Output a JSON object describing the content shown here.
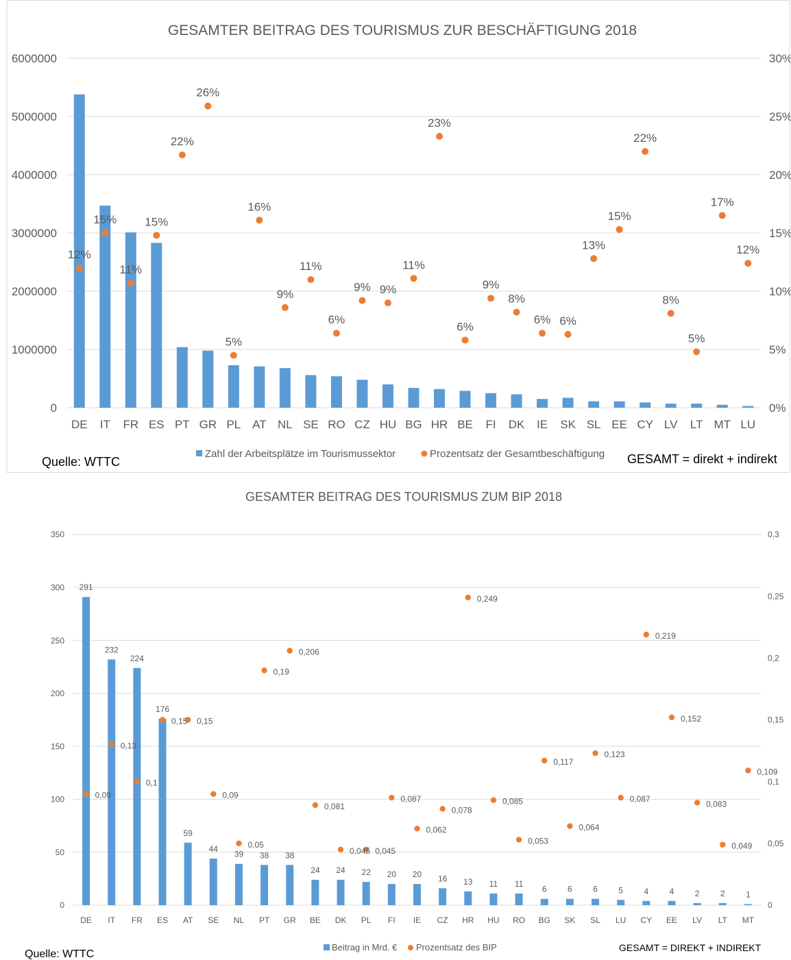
{
  "colors": {
    "bar": "#5b9bd5",
    "dot": "#ed7d31",
    "text": "#595959",
    "grid": "#d9d9d9",
    "footer": "#000000"
  },
  "chart_data": [
    {
      "type": "bar",
      "title": "GESAMTER BEITRAG DES TOURISMUS  ZUR BESCHÄFTIGUNG 2018",
      "categories": [
        "DE",
        "IT",
        "FR",
        "ES",
        "PT",
        "GR",
        "PL",
        "AT",
        "NL",
        "SE",
        "RO",
        "CZ",
        "HU",
        "BG",
        "HR",
        "BE",
        "FI",
        "DK",
        "IE",
        "SK",
        "SL",
        "EE",
        "CY",
        "LV",
        "LT",
        "MT",
        "LU"
      ],
      "series": [
        {
          "name": "Zahl der Arbeitsplätze im Tourismussektor",
          "kind": "bar",
          "axis": "left",
          "values": [
            5380000,
            3470000,
            3010000,
            2830000,
            1040000,
            980000,
            730000,
            710000,
            680000,
            560000,
            540000,
            480000,
            400000,
            340000,
            320000,
            290000,
            250000,
            230000,
            150000,
            170000,
            110000,
            110000,
            90000,
            70000,
            70000,
            50000,
            30000
          ]
        },
        {
          "name": "Prozentsatz der Gesamtbeschäftigung",
          "kind": "dot",
          "axis": "right",
          "values": [
            0.12,
            0.15,
            0.107,
            0.148,
            0.217,
            0.259,
            0.045,
            0.161,
            0.086,
            0.11,
            0.064,
            0.092,
            0.09,
            0.111,
            0.233,
            0.058,
            0.094,
            0.082,
            0.064,
            0.063,
            0.128,
            0.153,
            0.22,
            0.081,
            0.048,
            0.165,
            0.124
          ],
          "labels": [
            "12%",
            "15%",
            "11%",
            "15%",
            "22%",
            "26%",
            "5%",
            "16%",
            "9%",
            "11%",
            "6%",
            "9%",
            "9%",
            "11%",
            "23%",
            "6%",
            "9%",
            "8%",
            "6%",
            "6%",
            "13%",
            "15%",
            "22%",
            "8%",
            "5%",
            "17%",
            "12%"
          ]
        }
      ],
      "ylim": [
        0,
        6000000
      ],
      "y2lim": [
        0,
        0.3
      ],
      "yticks": [
        "0",
        "1000000",
        "2000000",
        "3000000",
        "4000000",
        "5000000",
        "6000000"
      ],
      "y2ticks": [
        "0%",
        "5%",
        "10%",
        "15%",
        "20%",
        "25%",
        "30%"
      ],
      "grid": true,
      "legend": "bottom",
      "source": "Quelle: WTTC",
      "note": "GESAMT = direkt + indirekt"
    },
    {
      "type": "bar",
      "title": "GESAMTER BEITRAG DES TOURISMUS ZUM BIP 2018",
      "categories": [
        "DE",
        "IT",
        "FR",
        "ES",
        "AT",
        "SE",
        "NL",
        "PT",
        "GR",
        "BE",
        "DK",
        "PL",
        "FI",
        "IE",
        "CZ",
        "HR",
        "HU",
        "RO",
        "BG",
        "SK",
        "SL",
        "LU",
        "CY",
        "EE",
        "LV",
        "LT",
        "MT"
      ],
      "series": [
        {
          "name": "Beitrag in Mrd. €",
          "kind": "bar",
          "axis": "left",
          "values": [
            291,
            232,
            224,
            176,
            59,
            44,
            39,
            38,
            38,
            24,
            24,
            22,
            20,
            20,
            16,
            13,
            11,
            11,
            6,
            6,
            6,
            5,
            4,
            4,
            2,
            2,
            1
          ],
          "labels": [
            "291",
            "232",
            "224",
            "176",
            "59",
            "44",
            "39",
            "38",
            "38",
            "24",
            "24",
            "22",
            "20",
            "20",
            "16",
            "13",
            "11",
            "11",
            "6",
            "6",
            "6",
            "5",
            "4",
            "4",
            "2",
            "2",
            "1"
          ]
        },
        {
          "name": "Prozentsatz des BIP",
          "kind": "dot",
          "axis": "right",
          "values": [
            0.09,
            0.13,
            0.1,
            0.15,
            0.15,
            0.09,
            0.05,
            0.19,
            0.206,
            0.081,
            0.045,
            0.045,
            0.087,
            0.062,
            0.078,
            0.249,
            0.085,
            0.053,
            0.117,
            0.064,
            0.123,
            0.087,
            0.219,
            0.152,
            0.083,
            0.049,
            0.109
          ],
          "labels": [
            "0,09",
            "0,13",
            "0,1",
            "0,15",
            "0,15",
            "0,09",
            "0,05",
            "0,19",
            "0,206",
            "0,081",
            "0,045",
            "0,045",
            "0,087",
            "0,062",
            "0,078",
            "0,249",
            "0,085",
            "0,053",
            "0,117",
            "0,064",
            "0,123",
            "0,087",
            "0,219",
            "0,152",
            "0,083",
            "0,049",
            "0,109"
          ]
        }
      ],
      "ylim": [
        0,
        350
      ],
      "y2lim": [
        0,
        0.3
      ],
      "yticks": [
        "0",
        "50",
        "100",
        "150",
        "200",
        "250",
        "300",
        "350"
      ],
      "y2ticks": [
        "0",
        "0,05",
        "0,1",
        "0,15",
        "0,2",
        "0,25",
        "0,3"
      ],
      "grid": true,
      "legend": "bottom",
      "source": "Quelle: WTTC",
      "note": "GESAMT  = DIREKT + INDIREKT"
    }
  ]
}
